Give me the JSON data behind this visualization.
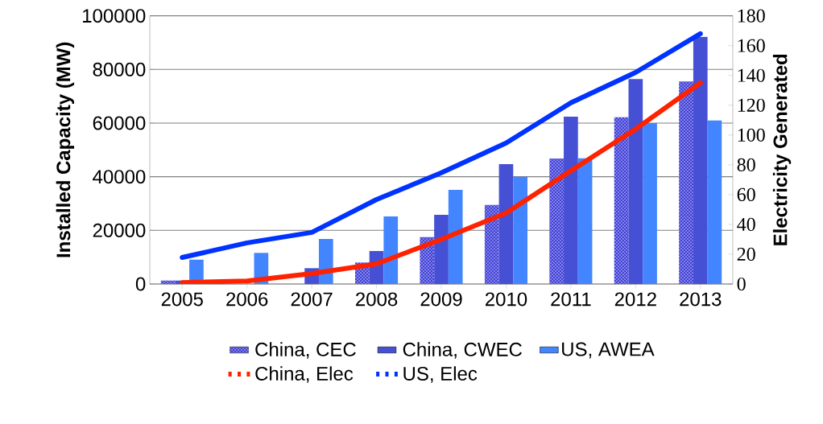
{
  "chart_data": {
    "type": "bar",
    "xlabel": null,
    "ylabel": "Installed Capacity (MW)",
    "y2label": "Electricity Generated",
    "categories": [
      "2005",
      "2006",
      "2007",
      "2008",
      "2009",
      "2010",
      "2011",
      "2012",
      "2013"
    ],
    "series": [
      {
        "name": "China, CEC",
        "color": "#4040d8",
        "values": [
          1300,
          null,
          null,
          8000,
          17500,
          29500,
          46800,
          62200,
          75500
        ]
      },
      {
        "name": "China, CWEC",
        "color": "#4550d4",
        "values": [
          1300,
          null,
          5900,
          12300,
          25800,
          44700,
          62400,
          76400,
          92200
        ]
      },
      {
        "name": "US, AWEA",
        "color": "#4285ff",
        "values": [
          9100,
          11600,
          16800,
          25200,
          35100,
          40000,
          46900,
          60000,
          61000
        ]
      },
      {
        "name": "China, Elec",
        "type": "line",
        "axis": "y2",
        "color": "#ff2200",
        "values": [
          1,
          2,
          7,
          13.5,
          30,
          47.6,
          76,
          104,
          135
        ]
      },
      {
        "name": "US, Elec",
        "type": "line",
        "axis": "y2",
        "color": "#0033ff",
        "values": [
          17.8,
          27.6,
          34.6,
          56.7,
          74.6,
          94.6,
          121.6,
          142,
          168
        ]
      }
    ],
    "ylim": [
      0,
      100000
    ],
    "yticks": [
      0,
      20000,
      40000,
      60000,
      80000,
      100000
    ],
    "y2lim": [
      0,
      180
    ],
    "y2ticks": [
      0,
      20,
      40,
      60,
      80,
      100,
      120,
      140,
      160,
      180
    ],
    "grid": "y",
    "legend": "bottom",
    "marker": "none",
    "line_style": "solid"
  }
}
